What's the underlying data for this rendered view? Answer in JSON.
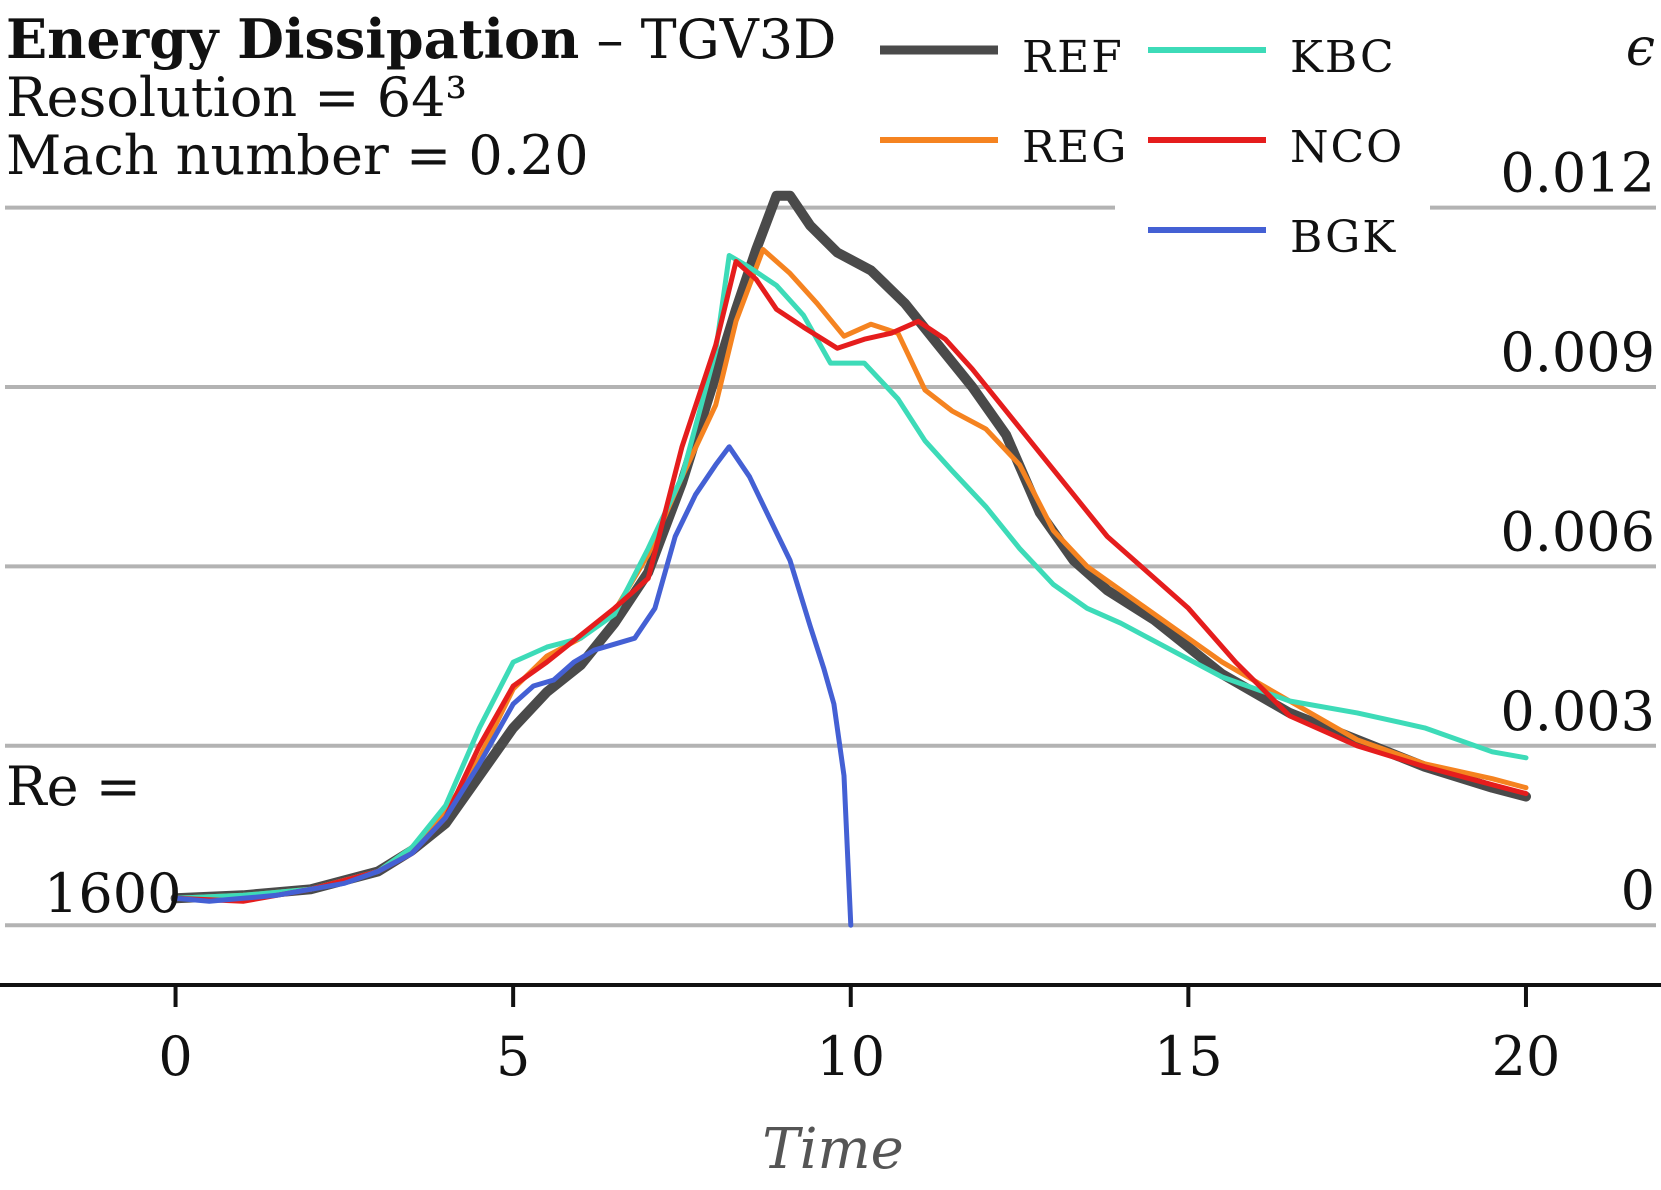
{
  "title": {
    "bold": "Energy Dissipation",
    "rest": " – TGV3D",
    "resolution": "Resolution = 64³",
    "mach": "Mach number = 0.20"
  },
  "re_label": "Re =",
  "re_value": "1600",
  "y_axis_symbol": "ϵ",
  "chart_data": {
    "type": "line",
    "title": "Energy Dissipation – TGV3D",
    "xlabel": "Time",
    "ylabel": "ϵ",
    "xlim": [
      -2.6,
      22.0
    ],
    "ylim": [
      -0.001,
      0.0138
    ],
    "x_ticks": [
      "0",
      "5",
      "10",
      "15",
      "20"
    ],
    "y_ticks": [
      "0",
      "0.003",
      "0.006",
      "0.009",
      "0.012"
    ],
    "grid": "horizontal",
    "legend": "top-right",
    "series": [
      {
        "name": "REF",
        "color": "#4a4a4a",
        "x": [
          0,
          1,
          2,
          3,
          3.5,
          4,
          4.5,
          5,
          5.5,
          6,
          6.5,
          7,
          7.5,
          8,
          8.3,
          8.6,
          8.9,
          9.1,
          9.4,
          9.8,
          10.3,
          10.8,
          11.3,
          11.8,
          12.3,
          12.8,
          13.3,
          13.8,
          14.5,
          15.5,
          16.5,
          17.5,
          18.5,
          19.5,
          20
        ],
        "y": [
          0.00045,
          0.0005,
          0.0006,
          0.0009,
          0.00125,
          0.0017,
          0.0025,
          0.0033,
          0.0039,
          0.00435,
          0.00505,
          0.0059,
          0.0074,
          0.0092,
          0.0103,
          0.0113,
          0.0122,
          0.0122,
          0.0117,
          0.01125,
          0.01095,
          0.0104,
          0.0097,
          0.009,
          0.0082,
          0.0069,
          0.0061,
          0.0056,
          0.0051,
          0.0042,
          0.00355,
          0.0031,
          0.00265,
          0.0023,
          0.00215
        ]
      },
      {
        "name": "REG",
        "color": "#f58320",
        "x": [
          0,
          1,
          2,
          3,
          3.5,
          4,
          4.5,
          5,
          5.5,
          6,
          6.5,
          7,
          7.5,
          8,
          8.3,
          8.7,
          9.1,
          9.5,
          9.9,
          10.3,
          10.7,
          11.1,
          11.5,
          12,
          12.5,
          13,
          13.5,
          14,
          14.5,
          15.5,
          16.5,
          17.5,
          18.5,
          19.5,
          20
        ],
        "y": [
          0.00045,
          0.0005,
          0.0006,
          0.0009,
          0.0013,
          0.0019,
          0.0028,
          0.00395,
          0.0045,
          0.0048,
          0.00525,
          0.0062,
          0.0075,
          0.0087,
          0.0101,
          0.0113,
          0.0109,
          0.0104,
          0.00985,
          0.01005,
          0.0099,
          0.00895,
          0.0086,
          0.0083,
          0.0077,
          0.0066,
          0.006,
          0.0056,
          0.0052,
          0.0044,
          0.00375,
          0.0031,
          0.0027,
          0.00245,
          0.0023
        ]
      },
      {
        "name": "KBC",
        "color": "#3ddbb8",
        "x": [
          0,
          1,
          2,
          3,
          3.5,
          4,
          4.5,
          5,
          5.5,
          6,
          6.5,
          7,
          7.5,
          8,
          8.2,
          8.5,
          8.9,
          9.3,
          9.7,
          10.2,
          10.7,
          11.1,
          11.5,
          12,
          12.5,
          13,
          13.5,
          14,
          14.5,
          15.5,
          16.5,
          17.5,
          18.5,
          19.5,
          20
        ],
        "y": [
          0.00045,
          0.0005,
          0.0006,
          0.0009,
          0.0013,
          0.002,
          0.0033,
          0.0044,
          0.00465,
          0.0048,
          0.0052,
          0.0063,
          0.0075,
          0.0096,
          0.0112,
          0.011,
          0.0107,
          0.0102,
          0.0094,
          0.0094,
          0.0088,
          0.0081,
          0.0076,
          0.007,
          0.0063,
          0.0057,
          0.0053,
          0.00505,
          0.00475,
          0.00415,
          0.00375,
          0.00355,
          0.0033,
          0.0029,
          0.0028
        ]
      },
      {
        "name": "NCO",
        "color": "#e51d1d",
        "x": [
          0,
          1,
          2,
          3,
          3.5,
          4,
          4.5,
          5,
          5.5,
          6,
          6.5,
          7,
          7.5,
          8,
          8.3,
          8.6,
          8.9,
          9.3,
          9.8,
          10.2,
          10.6,
          11.0,
          11.4,
          11.8,
          12.3,
          12.8,
          13.3,
          13.8,
          14.3,
          15,
          15.7,
          16.5,
          17.5,
          18.5,
          19.5,
          20
        ],
        "y": [
          0.00045,
          0.0004,
          0.0006,
          0.0009,
          0.0012,
          0.0018,
          0.003,
          0.004,
          0.0044,
          0.00485,
          0.0053,
          0.0058,
          0.008,
          0.0097,
          0.0111,
          0.0108,
          0.0103,
          0.01,
          0.00965,
          0.0098,
          0.0099,
          0.0101,
          0.0098,
          0.0093,
          0.0086,
          0.0079,
          0.0072,
          0.0065,
          0.006,
          0.0053,
          0.0044,
          0.0035,
          0.003,
          0.00265,
          0.00235,
          0.0022
        ]
      },
      {
        "name": "BGK",
        "color": "#4460d4",
        "x": [
          0,
          0.5,
          1,
          1.5,
          2,
          2.5,
          3,
          3.5,
          4,
          4.5,
          5,
          5.3,
          5.6,
          5.9,
          6.2,
          6.5,
          6.8,
          7.1,
          7.4,
          7.7,
          8.0,
          8.2,
          8.5,
          8.8,
          9.1,
          9.4,
          9.6,
          9.75,
          9.9,
          10.0
        ],
        "y": [
          0.00045,
          0.0004,
          0.00045,
          0.0005,
          0.0006,
          0.0007,
          0.0009,
          0.0012,
          0.0018,
          0.0027,
          0.0037,
          0.004,
          0.0041,
          0.0044,
          0.0046,
          0.0047,
          0.0048,
          0.0053,
          0.0065,
          0.0072,
          0.0077,
          0.008,
          0.0075,
          0.0068,
          0.0061,
          0.005,
          0.0043,
          0.0037,
          0.0025,
          0.0
        ]
      }
    ]
  },
  "colors": {
    "grid": "#b3b3b3",
    "axis": "#111111",
    "text": "#111111",
    "xlabel": "#555555"
  }
}
